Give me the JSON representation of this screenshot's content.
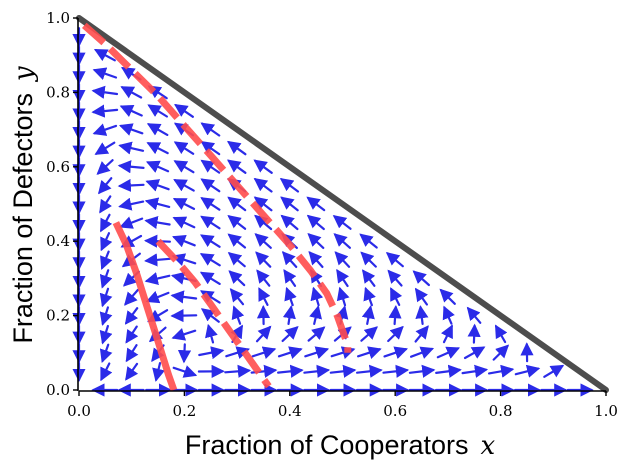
{
  "chart_data": {
    "type": "quiver",
    "title": "",
    "xlabel": "Fraction of Cooperators",
    "xlabel_var": "x",
    "ylabel": "Fraction of Defectors",
    "ylabel_var": "y",
    "xlim": [
      0,
      1
    ],
    "ylim": [
      0,
      1
    ],
    "xticks": [
      "0.0",
      "0.2",
      "0.4",
      "0.6",
      "0.8",
      "1.0"
    ],
    "yticks": [
      "0.0",
      "0.2",
      "0.4",
      "0.6",
      "0.8",
      "1.0"
    ],
    "xtick_values": [
      0,
      0.2,
      0.4,
      0.6,
      0.8,
      1.0
    ],
    "ytick_values": [
      0,
      0.2,
      0.4,
      0.6,
      0.8,
      1.0
    ],
    "grid": false,
    "colors": {
      "vector_field": "#2b2be8",
      "boundary": "#444444",
      "trajectory": "#ff4d4d"
    },
    "boundary_line": {
      "x": [
        0,
        1
      ],
      "y": [
        1,
        0
      ]
    },
    "trajectories": [
      {
        "style": "dashed",
        "x": [
          0.01,
          0.05,
          0.1,
          0.15,
          0.2,
          0.25,
          0.3,
          0.35,
          0.4,
          0.44,
          0.47,
          0.49,
          0.5,
          0.51,
          0.51
        ],
        "y": [
          0.98,
          0.93,
          0.86,
          0.79,
          0.71,
          0.63,
          0.55,
          0.47,
          0.39,
          0.32,
          0.26,
          0.2,
          0.16,
          0.12,
          0.1
        ]
      },
      {
        "style": "solid",
        "x": [
          0.07,
          0.09,
          0.11,
          0.13,
          0.15,
          0.17,
          0.18
        ],
        "y": [
          0.45,
          0.39,
          0.31,
          0.22,
          0.13,
          0.04,
          0.0
        ]
      },
      {
        "style": "dashed",
        "x": [
          0.15,
          0.19,
          0.22,
          0.25,
          0.28,
          0.31,
          0.34,
          0.36
        ],
        "y": [
          0.4,
          0.34,
          0.29,
          0.23,
          0.17,
          0.11,
          0.05,
          0.01
        ]
      }
    ],
    "field_grid": {
      "x_step": 0.05,
      "y_step": 0.05,
      "arrow_length_units": 0.045
    }
  }
}
